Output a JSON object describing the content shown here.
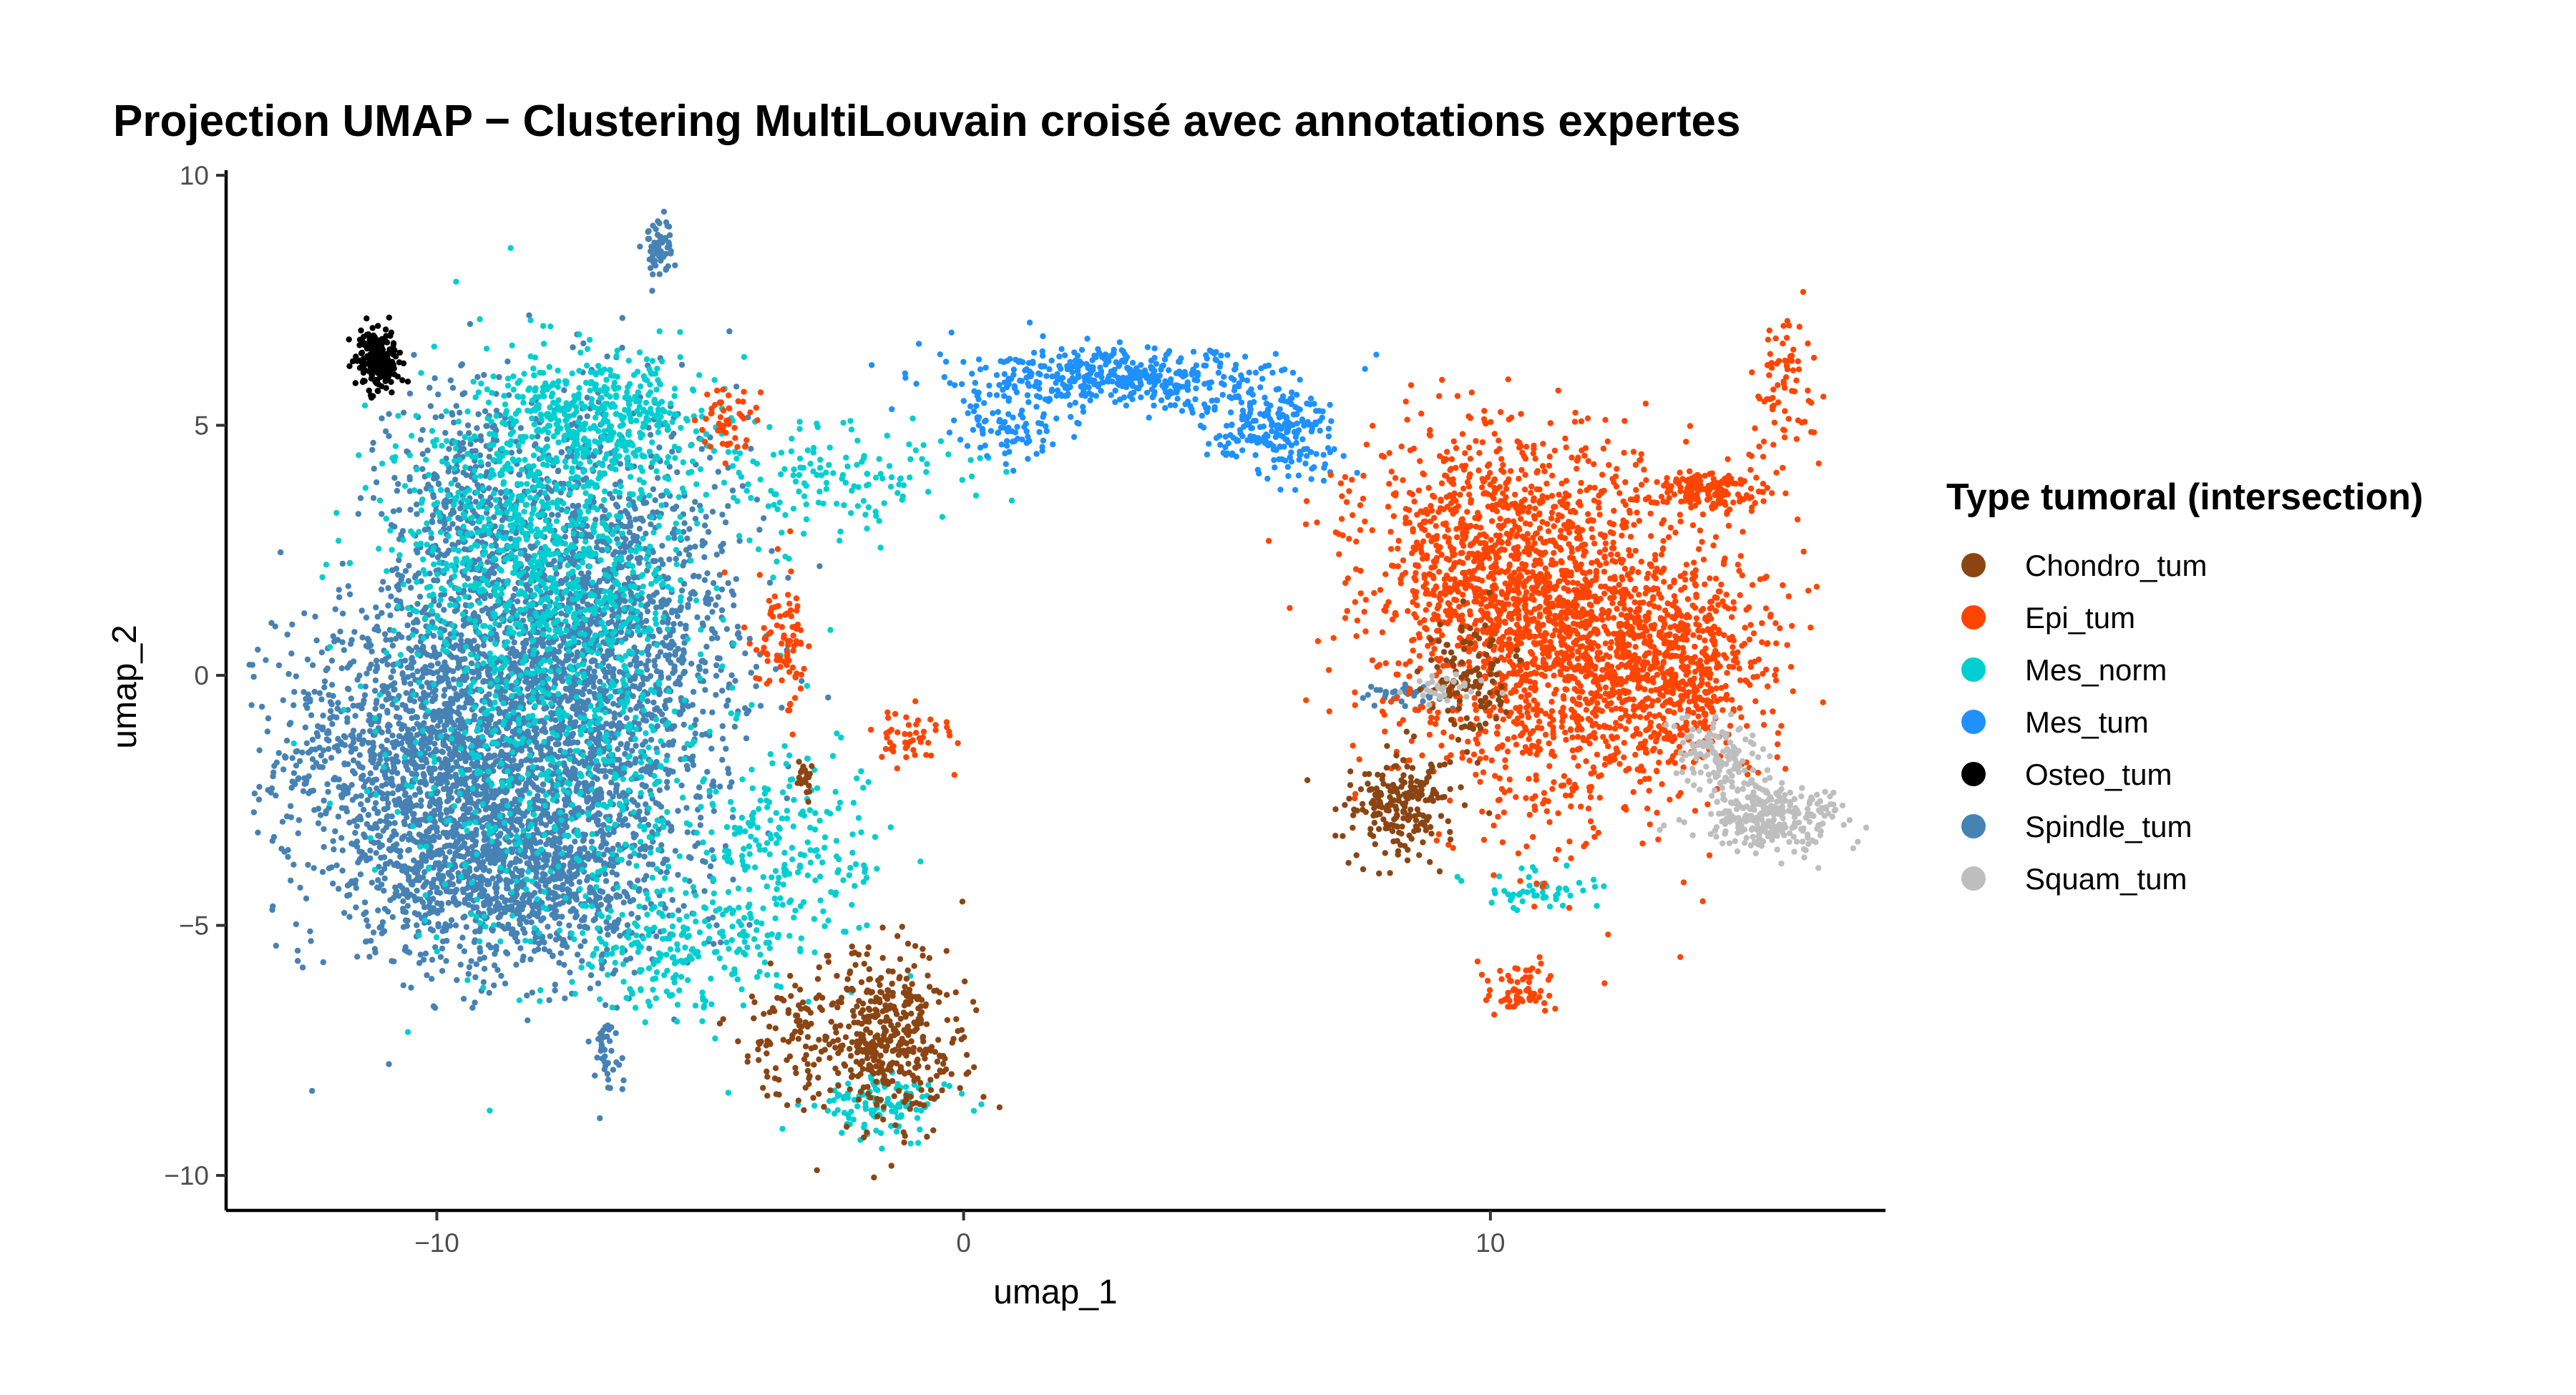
{
  "chart_data": {
    "type": "scatter",
    "title": "Projection UMAP − Clustering MultiLouvain croisé avec annotations expertes",
    "xlabel": "umap_1",
    "ylabel": "umap_2",
    "xlim": [
      -14,
      17.5
    ],
    "ylim": [
      -10.7,
      10.1
    ],
    "xticks": [
      -10,
      0,
      10
    ],
    "xtick_labels": [
      "−10",
      "0",
      "10"
    ],
    "yticks": [
      -10,
      -5,
      0,
      5,
      10
    ],
    "ytick_labels": [
      "−10",
      "−5",
      "0",
      "5",
      "10"
    ],
    "grid": false,
    "legend": {
      "title": "Type tumoral (intersection)",
      "placement": "right"
    },
    "series": [
      {
        "name": "Spindle_tum",
        "color": "#4682B4",
        "clusters": [
          {
            "cx": -10.2,
            "cy": -1.6,
            "sx": 1.4,
            "sy": 1.6,
            "n": 1400
          },
          {
            "cx": -8.4,
            "cy": -4.0,
            "sx": 1.4,
            "sy": 1.0,
            "n": 1100
          },
          {
            "cx": -7.0,
            "cy": 1.5,
            "sx": 1.4,
            "sy": 1.9,
            "n": 1300
          },
          {
            "cx": -7.8,
            "cy": -1.0,
            "sx": 1.6,
            "sy": 1.6,
            "n": 1200
          },
          {
            "cx": -9.5,
            "cy": 3.5,
            "sx": 0.7,
            "sy": 1.2,
            "n": 350
          },
          {
            "cx": -5.8,
            "cy": 8.6,
            "sx": 0.15,
            "sy": 0.3,
            "n": 60
          },
          {
            "cx": -6.8,
            "cy": -7.6,
            "sx": 0.15,
            "sy": 0.4,
            "n": 40
          },
          {
            "cx": 8.4,
            "cy": -0.4,
            "sx": 0.5,
            "sy": 0.15,
            "n": 40
          }
        ]
      },
      {
        "name": "Mes_norm",
        "color": "#00CED1",
        "clusters": [
          {
            "cx": -8.0,
            "cy": 2.5,
            "sx": 1.4,
            "sy": 1.6,
            "n": 900
          },
          {
            "cx": -7.0,
            "cy": 5.2,
            "sx": 1.0,
            "sy": 0.6,
            "n": 400
          },
          {
            "cx": -7.5,
            "cy": -1.5,
            "sx": 1.6,
            "sy": 2.2,
            "n": 600
          },
          {
            "cx": -3.2,
            "cy": -3.5,
            "sx": 0.9,
            "sy": 1.0,
            "n": 200
          },
          {
            "cx": -1.5,
            "cy": -8.6,
            "sx": 0.6,
            "sy": 0.3,
            "n": 120
          },
          {
            "cx": -2.5,
            "cy": 4.0,
            "sx": 1.5,
            "sy": 0.6,
            "n": 150
          },
          {
            "cx": -5.5,
            "cy": -5.5,
            "sx": 1.0,
            "sy": 0.6,
            "n": 200
          },
          {
            "cx": 11.0,
            "cy": -4.3,
            "sx": 0.6,
            "sy": 0.2,
            "n": 50
          }
        ]
      },
      {
        "name": "Mes_tum",
        "color": "#1E90FF",
        "clusters": [
          {
            "cx": 3.0,
            "cy": 5.9,
            "sx": 1.5,
            "sy": 0.3,
            "n": 450
          },
          {
            "cx": 5.8,
            "cy": 5.1,
            "sx": 0.6,
            "sy": 0.35,
            "n": 180
          },
          {
            "cx": 0.8,
            "cy": 4.9,
            "sx": 0.5,
            "sy": 0.3,
            "n": 80
          },
          {
            "cx": 6.5,
            "cy": 4.3,
            "sx": 0.4,
            "sy": 0.3,
            "n": 40
          }
        ]
      },
      {
        "name": "Epi_tum",
        "color": "#FF4500",
        "clusters": [
          {
            "cx": 11.5,
            "cy": 0.6,
            "sx": 1.6,
            "sy": 1.7,
            "n": 1600
          },
          {
            "cx": 10.0,
            "cy": 2.6,
            "sx": 1.2,
            "sy": 1.2,
            "n": 700
          },
          {
            "cx": 13.5,
            "cy": 0.2,
            "sx": 0.8,
            "sy": 1.0,
            "n": 500
          },
          {
            "cx": 14.2,
            "cy": 3.7,
            "sx": 0.5,
            "sy": 0.2,
            "n": 150
          },
          {
            "cx": 15.6,
            "cy": 5.6,
            "sx": 0.3,
            "sy": 0.8,
            "n": 80
          },
          {
            "cx": 10.6,
            "cy": -6.3,
            "sx": 0.3,
            "sy": 0.3,
            "n": 60
          },
          {
            "cx": -3.5,
            "cy": 0.6,
            "sx": 0.3,
            "sy": 0.7,
            "n": 90
          },
          {
            "cx": -1.0,
            "cy": -1.2,
            "sx": 0.4,
            "sy": 0.3,
            "n": 50
          },
          {
            "cx": -4.5,
            "cy": 5.0,
            "sx": 0.3,
            "sy": 0.4,
            "n": 50
          }
        ]
      },
      {
        "name": "Chondro_tum",
        "color": "#8B4513",
        "clusters": [
          {
            "cx": -1.5,
            "cy": -7.3,
            "sx": 0.7,
            "sy": 0.9,
            "n": 450
          },
          {
            "cx": -3.3,
            "cy": -7.5,
            "sx": 0.5,
            "sy": 0.6,
            "n": 80
          },
          {
            "cx": 8.3,
            "cy": -2.6,
            "sx": 0.5,
            "sy": 0.5,
            "n": 220
          },
          {
            "cx": 9.6,
            "cy": -0.1,
            "sx": 0.4,
            "sy": 0.7,
            "n": 120
          },
          {
            "cx": -3.0,
            "cy": -2.1,
            "sx": 0.1,
            "sy": 0.2,
            "n": 20
          }
        ]
      },
      {
        "name": "Squam_tum",
        "color": "#BEBEBE",
        "clusters": [
          {
            "cx": 15.3,
            "cy": -2.8,
            "sx": 0.7,
            "sy": 0.35,
            "n": 300
          },
          {
            "cx": 14.3,
            "cy": -1.6,
            "sx": 0.4,
            "sy": 0.35,
            "n": 120
          },
          {
            "cx": 9.2,
            "cy": -0.3,
            "sx": 0.4,
            "sy": 0.15,
            "n": 30
          }
        ]
      },
      {
        "name": "Osteo_tum",
        "color": "#000000",
        "clusters": [
          {
            "cx": -11.1,
            "cy": 6.3,
            "sx": 0.2,
            "sy": 0.3,
            "n": 220
          }
        ]
      }
    ],
    "legend_order": [
      "Chondro_tum",
      "Epi_tum",
      "Mes_norm",
      "Mes_tum",
      "Osteo_tum",
      "Spindle_tum",
      "Squam_tum"
    ]
  }
}
